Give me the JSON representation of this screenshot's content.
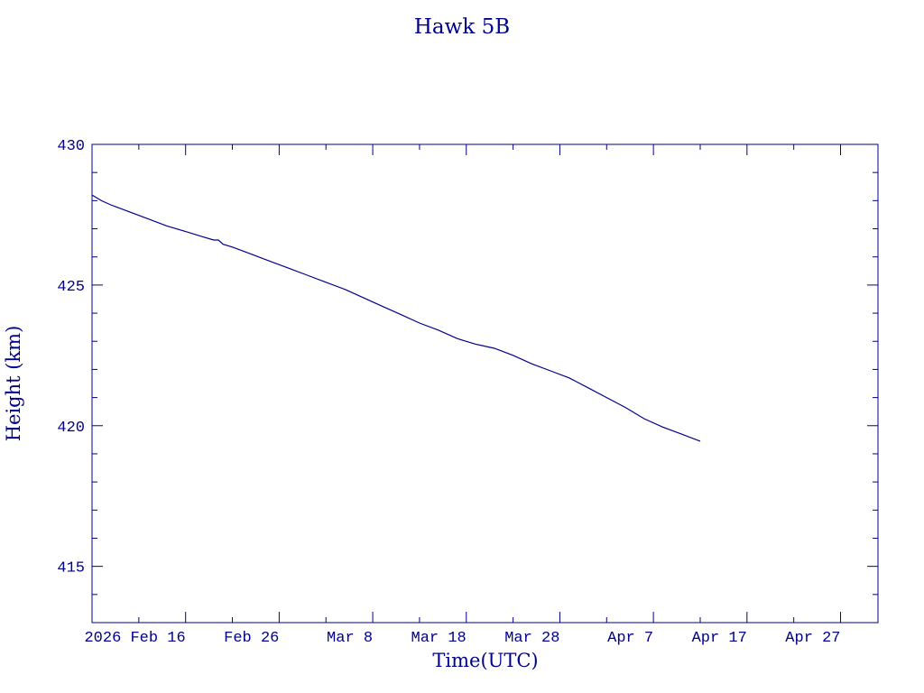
{
  "chart_data": {
    "type": "line",
    "title": "Hawk 5B",
    "xlabel": "Time(UTC)",
    "ylabel": "Height (km)",
    "color": "#00008b",
    "x_range": [
      "2026-02-06",
      "2026-05-01"
    ],
    "ylim": [
      413,
      430
    ],
    "yticks": [
      415,
      420,
      425,
      430
    ],
    "ytick_labels": [
      "415",
      "420",
      "425",
      "430"
    ],
    "xticks": [
      {
        "date": "2026-02-16",
        "label": "2026 Feb 16"
      },
      {
        "date": "2026-02-26",
        "label": "Feb 26"
      },
      {
        "date": "2026-03-08",
        "label": "Mar  8"
      },
      {
        "date": "2026-03-18",
        "label": "Mar 18"
      },
      {
        "date": "2026-03-28",
        "label": "Mar 28"
      },
      {
        "date": "2026-04-07",
        "label": "Apr  7"
      },
      {
        "date": "2026-04-17",
        "label": "Apr 17"
      },
      {
        "date": "2026-04-27",
        "label": "Apr 27"
      }
    ],
    "series": [
      {
        "x": [
          "2026-02-06",
          "2026-02-07",
          "2026-02-08",
          "2026-02-10",
          "2026-02-12",
          "2026-02-14",
          "2026-02-16",
          "2026-02-18",
          "2026-02-19",
          "2026-02-19T12:00",
          "2026-02-20",
          "2026-02-21",
          "2026-02-23",
          "2026-02-25",
          "2026-02-27",
          "2026-03-01",
          "2026-03-03",
          "2026-03-05",
          "2026-03-07",
          "2026-03-09",
          "2026-03-11",
          "2026-03-13",
          "2026-03-15",
          "2026-03-17",
          "2026-03-19",
          "2026-03-21",
          "2026-03-23",
          "2026-03-25",
          "2026-03-27",
          "2026-03-29",
          "2026-03-31",
          "2026-04-02",
          "2026-04-04",
          "2026-04-06",
          "2026-04-08",
          "2026-04-10",
          "2026-04-12"
        ],
        "y": [
          428.2,
          428.0,
          427.85,
          427.6,
          427.35,
          427.1,
          426.9,
          426.7,
          426.6,
          426.6,
          426.45,
          426.35,
          426.1,
          425.85,
          425.6,
          425.35,
          425.1,
          424.85,
          424.55,
          424.25,
          423.95,
          423.65,
          423.4,
          423.1,
          422.9,
          422.75,
          422.5,
          422.2,
          421.95,
          421.7,
          421.35,
          421.0,
          420.65,
          420.25,
          419.95,
          419.7,
          419.45
        ]
      }
    ]
  }
}
